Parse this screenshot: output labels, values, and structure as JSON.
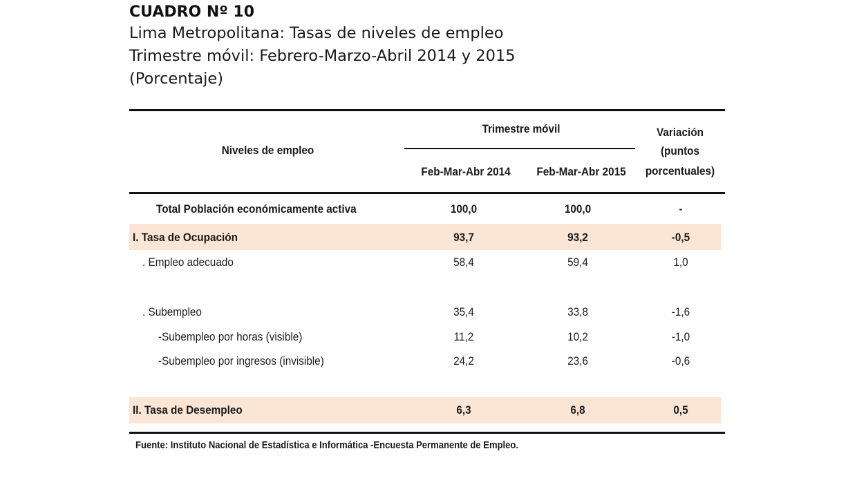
{
  "document": {
    "cuadro_title": "CUADRO Nº 10",
    "subtitle_line1": "Lima Metropolitana: Tasas de niveles de empleo",
    "subtitle_line2": "Trimestre móvil: Febrero-Marzo-Abril 2014 y 2015",
    "subtitle_line3": "(Porcentaje)"
  },
  "table": {
    "header": {
      "col1": "Niveles de empleo",
      "group": "Trimestre móvil",
      "col2": "Feb-Mar-Abr 2014",
      "col3": "Feb-Mar-Abr 2015",
      "variation_line1": "Variación",
      "variation_line2": "(puntos",
      "variation_line3": "porcentuales)"
    },
    "rows": [
      {
        "label": "Total Población económicamente activa",
        "v2014": "100,0",
        "v2015": "100,0",
        "var": "-"
      },
      {
        "label": "I. Tasa de Ocupación",
        "v2014": "93,7",
        "v2015": "93,2",
        "var": "-0,5"
      },
      {
        "label": ". Empleo adecuado",
        "v2014": "58,4",
        "v2015": "59,4",
        "var": "1,0"
      },
      {
        "label": ". Subempleo",
        "v2014": "35,4",
        "v2015": "33,8",
        "var": "-1,6"
      },
      {
        "label": "-Subempleo por horas (visible)",
        "v2014": "11,2",
        "v2015": "10,2",
        "var": "-1,0"
      },
      {
        "label": "-Subempleo por ingresos (invisible)",
        "v2014": "24,2",
        "v2015": "23,6",
        "var": "-0,6"
      },
      {
        "label": "II. Tasa de Desempleo",
        "v2014": "6,3",
        "v2015": "6,8",
        "var": "0,5"
      }
    ],
    "highlight_color": "#fbe6d6"
  },
  "source": "Fuente: Instituto Nacional de Estadística e Informática -Encuesta Permanente de Empleo."
}
